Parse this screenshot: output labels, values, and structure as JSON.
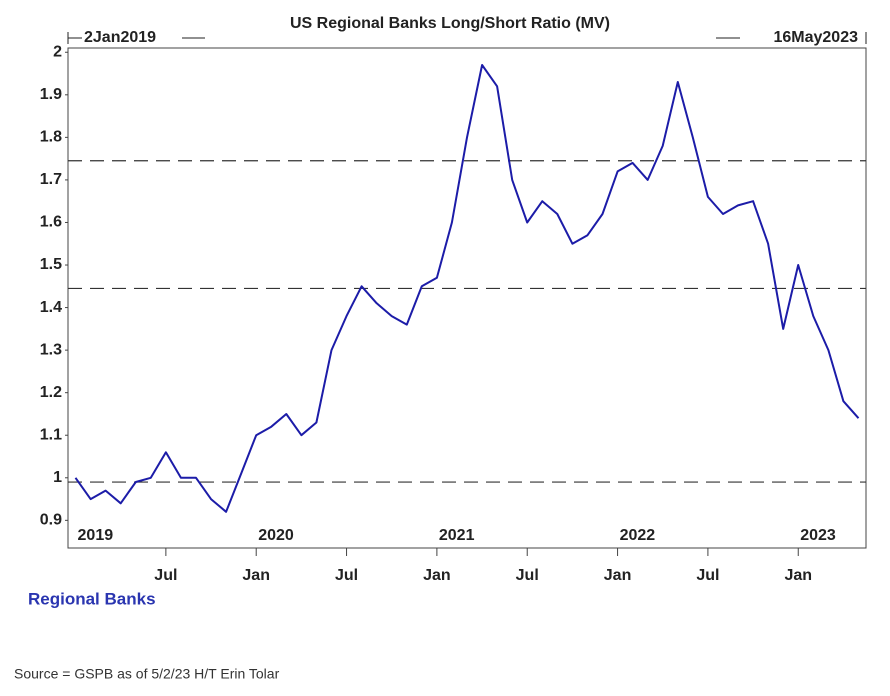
{
  "chart_data": {
    "type": "line",
    "title": "US Regional Banks Long/Short Ratio (MV)",
    "start_label": "2Jan2019",
    "end_label": "16May2023",
    "source": "Source = GSPB as of 5/2/23 H/T Erin Tolar",
    "x": [
      "2019-01",
      "2019-02",
      "2019-03",
      "2019-04",
      "2019-05",
      "2019-06",
      "2019-07",
      "2019-08",
      "2019-09",
      "2019-10",
      "2019-11",
      "2019-12",
      "2020-01",
      "2020-02",
      "2020-03",
      "2020-04",
      "2020-05",
      "2020-06",
      "2020-07",
      "2020-08",
      "2020-09",
      "2020-10",
      "2020-11",
      "2020-12",
      "2021-01",
      "2021-02",
      "2021-03",
      "2021-04",
      "2021-05",
      "2021-06",
      "2021-07",
      "2021-08",
      "2021-09",
      "2021-10",
      "2021-11",
      "2021-12",
      "2022-01",
      "2022-02",
      "2022-03",
      "2022-04",
      "2022-05",
      "2022-06",
      "2022-07",
      "2022-08",
      "2022-09",
      "2022-10",
      "2022-11",
      "2022-12",
      "2023-01",
      "2023-02",
      "2023-03",
      "2023-04",
      "2023-05"
    ],
    "series": [
      {
        "name": "Regional Banks",
        "color": "#1c1ca8",
        "values": [
          1.0,
          0.95,
          0.97,
          0.94,
          0.99,
          1.0,
          1.06,
          1.0,
          1.0,
          0.95,
          0.92,
          1.01,
          1.1,
          1.12,
          1.15,
          1.1,
          1.13,
          1.3,
          1.38,
          1.45,
          1.41,
          1.38,
          1.36,
          1.45,
          1.47,
          1.6,
          1.8,
          1.97,
          1.92,
          1.7,
          1.6,
          1.65,
          1.62,
          1.55,
          1.57,
          1.62,
          1.72,
          1.74,
          1.7,
          1.78,
          1.93,
          1.8,
          1.66,
          1.62,
          1.64,
          1.65,
          1.55,
          1.35,
          1.5,
          1.38,
          1.3,
          1.18,
          1.14
        ]
      }
    ],
    "ylim": [
      0.835,
      2.01
    ],
    "yticks": [
      0.9,
      1,
      1.1,
      1.2,
      1.3,
      1.4,
      1.5,
      1.6,
      1.7,
      1.8,
      1.9,
      2
    ],
    "xticks": [
      {
        "value": "2019-07",
        "label": "Jul"
      },
      {
        "value": "2020-01",
        "label": "Jan"
      },
      {
        "value": "2020-07",
        "label": "Jul"
      },
      {
        "value": "2021-01",
        "label": "Jan"
      },
      {
        "value": "2021-07",
        "label": "Jul"
      },
      {
        "value": "2022-01",
        "label": "Jan"
      },
      {
        "value": "2022-07",
        "label": "Jul"
      },
      {
        "value": "2023-01",
        "label": "Jan"
      }
    ],
    "year_labels": [
      {
        "value": "2019-01",
        "label": "2019"
      },
      {
        "value": "2020-01",
        "label": "2020"
      },
      {
        "value": "2021-01",
        "label": "2021"
      },
      {
        "value": "2022-01",
        "label": "2022"
      },
      {
        "value": "2023-01",
        "label": "2023"
      }
    ],
    "reference_lines": [
      1.745,
      1.445,
      0.99
    ],
    "grid": false
  }
}
